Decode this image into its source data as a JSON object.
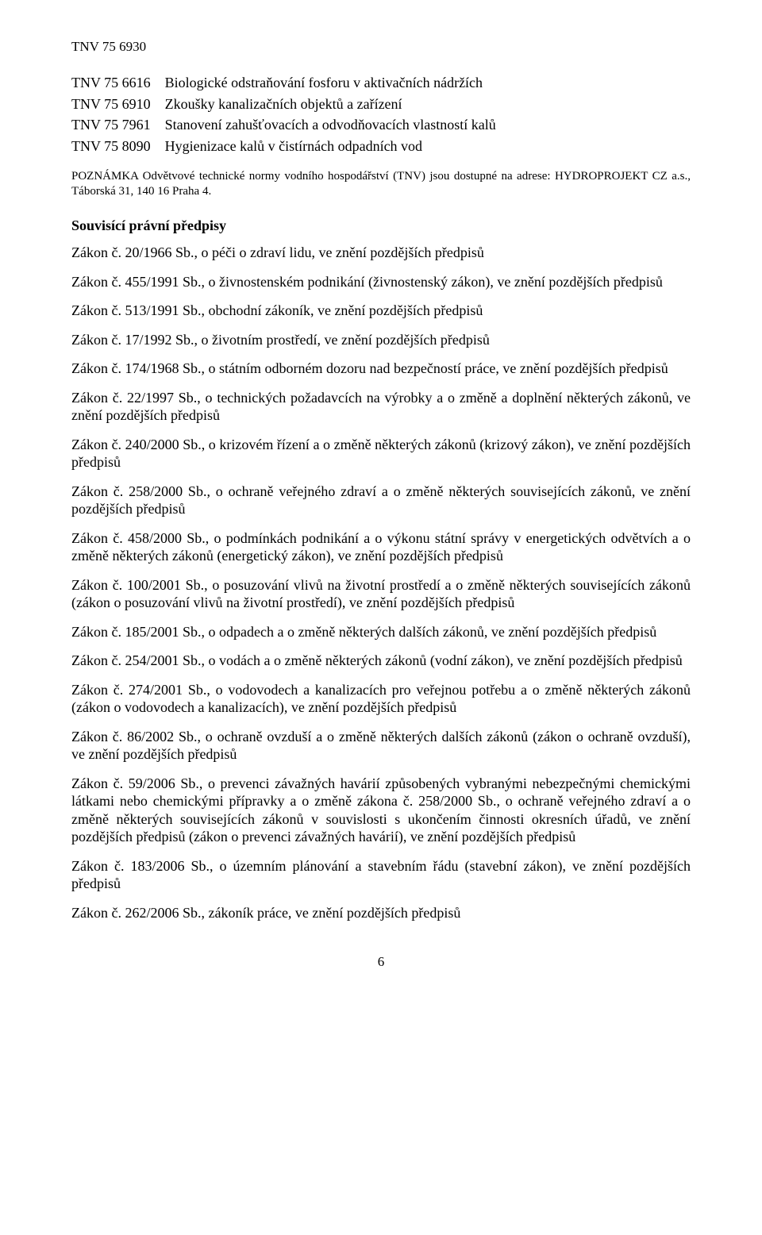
{
  "header_code": "TNV 75 6930",
  "references": [
    {
      "code": "TNV 75 6616",
      "title": "Biologické odstraňování fosforu v aktivačních nádržích"
    },
    {
      "code": "TNV 75 6910",
      "title": "Zkoušky kanalizačních objektů a zařízení"
    },
    {
      "code": "TNV 75 7961",
      "title": "Stanovení zahušťovacích a odvodňovacích vlastností kalů"
    },
    {
      "code": "TNV 75 8090",
      "title": "Hygienizace kalů v čistírnách odpadních vod"
    }
  ],
  "note_text": "POZNÁMKA Odvětvové technické normy vodního hospodářství (TNV) jsou dostupné na adrese: HYDROPROJEKT CZ a.s., Táborská 31, 140 16 Praha 4.",
  "section_heading": "Souvisící právní předpisy",
  "laws": [
    "Zákon č. 20/1966 Sb., o péči o zdraví lidu, ve znění pozdějších předpisů",
    "Zákon č. 455/1991 Sb., o živnostenském podnikání (živnostenský zákon), ve znění pozdějších předpisů",
    "Zákon č. 513/1991 Sb., obchodní zákoník, ve znění pozdějších předpisů",
    "Zákon č. 17/1992 Sb., o životním prostředí, ve znění pozdějších předpisů",
    "Zákon č. 174/1968 Sb., o státním odborném dozoru nad bezpečností práce, ve znění pozdějších předpisů",
    "Zákon č. 22/1997 Sb., o technických požadavcích na výrobky a o změně a doplnění některých zákonů, ve znění pozdějších předpisů",
    "Zákon č. 240/2000 Sb., o krizovém řízení a o změně některých zákonů (krizový zákon), ve znění pozdějších předpisů",
    "Zákon č. 258/2000 Sb., o ochraně veřejného zdraví a o změně některých souvisejících zákonů, ve znění pozdějších předpisů",
    "Zákon č. 458/2000 Sb., o podmínkách podnikání a o výkonu státní správy v energetických odvětvích a o změně některých zákonů (energetický zákon), ve znění pozdějších předpisů",
    "Zákon č. 100/2001 Sb., o posuzování vlivů na životní prostředí a o změně některých souvisejících zákonů (zákon o posuzování vlivů na životní prostředí), ve znění pozdějších předpisů",
    "Zákon č. 185/2001 Sb., o odpadech a o změně některých dalších zákonů, ve znění pozdějších předpisů",
    "Zákon č. 254/2001 Sb., o vodách a o změně některých zákonů (vodní zákon), ve znění pozdějších předpisů",
    "Zákon č. 274/2001 Sb., o vodovodech a kanalizacích pro veřejnou potřebu a o změně některých zákonů (zákon o vodovodech a kanalizacích), ve znění pozdějších předpisů",
    "Zákon č. 86/2002 Sb., o ochraně ovzduší a o změně některých dalších zákonů (zákon o ochraně ovzduší), ve znění pozdějších předpisů",
    "Zákon č. 59/2006 Sb., o prevenci závažných havárií způsobených vybranými nebezpečnými chemickými látkami nebo chemickými přípravky a o změně zákona č. 258/2000 Sb., o ochraně veřejného zdraví a o změně některých souvisejících zákonů v souvislosti s ukončením činnosti okresních úřadů, ve znění pozdějších předpisů (zákon o prevenci závažných havárií), ve znění pozdějších předpisů",
    "Zákon č. 183/2006 Sb., o územním plánování a stavebním řádu (stavební zákon), ve znění pozdějších předpisů",
    "Zákon č. 262/2006 Sb., zákoník práce, ve znění pozdějších předpisů"
  ],
  "page_number": "6"
}
